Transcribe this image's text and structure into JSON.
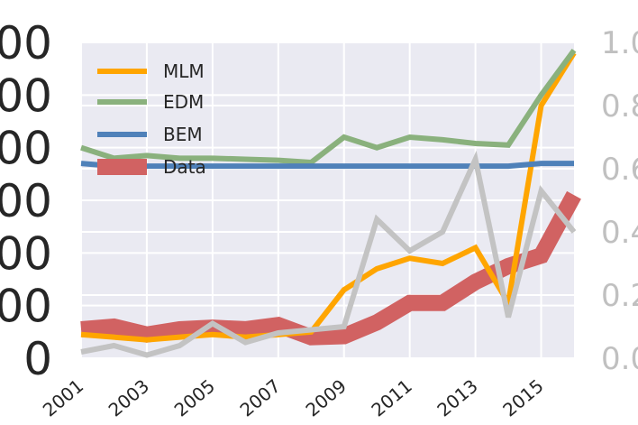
{
  "chart_data": {
    "type": "line",
    "x": [
      2001,
      2002,
      2003,
      2004,
      2005,
      2006,
      2007,
      2008,
      2009,
      2010,
      2011,
      2012,
      2013,
      2014,
      2015,
      2016
    ],
    "x_tick_labels": [
      "2001",
      "2003",
      "2005",
      "2007",
      "2009",
      "2011",
      "2013",
      "2015"
    ],
    "y_left_tick_labels": [
      "0",
      "00",
      "00",
      "00",
      "00",
      "00",
      "00"
    ],
    "y_right_tick_labels": [
      "0.0",
      "0.2",
      "0.4",
      "0.6",
      "0.8",
      "1.0"
    ],
    "ylim_left": [
      0,
      6
    ],
    "ylim_right": [
      0,
      1
    ],
    "xlim": [
      2001,
      2016
    ],
    "grid": true,
    "legend_position": "top-left",
    "series": [
      {
        "name": "Data",
        "axis": "left",
        "color": "#d16262",
        "width": "thick",
        "values": [
          0.55,
          0.6,
          0.45,
          0.55,
          0.58,
          0.55,
          0.63,
          0.4,
          0.42,
          0.68,
          1.05,
          1.05,
          1.45,
          1.75,
          1.95,
          3.1
        ]
      },
      {
        "name": "MLM",
        "axis": "left",
        "color": "#ffa500",
        "width": "medium",
        "values": [
          0.45,
          0.4,
          0.35,
          0.4,
          0.45,
          0.4,
          0.45,
          0.5,
          1.3,
          1.7,
          1.9,
          1.8,
          2.1,
          1.05,
          4.8,
          5.8
        ]
      },
      {
        "name": "EDM",
        "axis": "left",
        "color": "#8ab17d",
        "width": "medium",
        "values": [
          4.0,
          3.8,
          3.85,
          3.8,
          3.8,
          3.78,
          3.76,
          3.72,
          4.2,
          4.0,
          4.2,
          4.15,
          4.08,
          4.05,
          5.0,
          5.85
        ]
      },
      {
        "name": "BEM",
        "axis": "left",
        "color": "#4f81b9",
        "width": "medium",
        "values": [
          3.7,
          3.65,
          3.65,
          3.65,
          3.65,
          3.65,
          3.65,
          3.65,
          3.65,
          3.65,
          3.65,
          3.65,
          3.65,
          3.65,
          3.7,
          3.7
        ]
      },
      {
        "axis": "right",
        "color": "#c3c3c3",
        "width": "medium",
        "values": [
          0.02,
          0.04,
          0.01,
          0.04,
          0.11,
          0.05,
          0.08,
          0.09,
          0.1,
          0.44,
          0.34,
          0.4,
          0.63,
          0.13,
          0.53,
          0.4
        ]
      }
    ],
    "legend": [
      "MLM",
      "EDM",
      "BEM",
      "Data"
    ]
  }
}
